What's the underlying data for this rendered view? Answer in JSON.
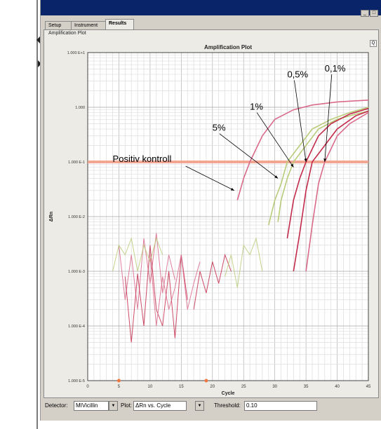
{
  "window": {
    "tabs": [
      "Setup",
      "Instrument",
      "Results"
    ],
    "active_tab": "Results",
    "panel_title": "Amplification Plot"
  },
  "chart_data": {
    "type": "line",
    "title": "Amplification Plot",
    "xlabel": "Cycle",
    "ylabel": "ΔRn",
    "xlim": [
      0,
      45
    ],
    "x_ticks": [
      0,
      5,
      10,
      15,
      20,
      25,
      30,
      35,
      40,
      45
    ],
    "y_scale": "log",
    "ylim": [
      1e-05,
      10
    ],
    "y_tick_labels": [
      "1.000 E+1",
      "1.000",
      "1.000 E-1",
      "1.000 E-2",
      "1.000 E-3",
      "1.000 E-4",
      "1.000 E-5"
    ],
    "y_tick_values": [
      10,
      1,
      0.1,
      0.01,
      0.001,
      0.0001,
      1e-05
    ],
    "threshold": 0.1,
    "grid": true,
    "colors": {
      "pink": "#d96a8a",
      "red": "#c42a4a",
      "green": "#b8cc7a",
      "threshold": "#f5a08a"
    },
    "series": [
      {
        "color": "pink",
        "x": [
          24,
          25,
          26,
          28,
          30,
          33,
          36,
          40,
          45
        ],
        "y": [
          0.02,
          0.05,
          0.1,
          0.3,
          0.6,
          0.9,
          1.1,
          1.25,
          1.35
        ]
      },
      {
        "color": "green",
        "x": [
          29,
          30,
          31,
          32,
          34,
          36,
          39,
          42,
          45
        ],
        "y": [
          0.007,
          0.02,
          0.04,
          0.1,
          0.2,
          0.4,
          0.6,
          0.8,
          1.0
        ]
      },
      {
        "color": "green",
        "x": [
          30.5,
          31,
          32,
          33,
          35,
          37,
          40,
          43,
          45
        ],
        "y": [
          0.008,
          0.02,
          0.05,
          0.1,
          0.2,
          0.4,
          0.6,
          0.75,
          0.85
        ]
      },
      {
        "color": "red",
        "x": [
          32,
          33,
          34,
          35,
          37,
          39,
          42,
          45
        ],
        "y": [
          0.004,
          0.02,
          0.05,
          0.1,
          0.3,
          0.5,
          0.75,
          0.95
        ]
      },
      {
        "color": "red",
        "x": [
          33,
          34,
          35,
          36,
          38,
          40,
          43,
          45
        ],
        "y": [
          0.001,
          0.005,
          0.03,
          0.1,
          0.2,
          0.4,
          0.7,
          0.85
        ]
      },
      {
        "color": "pink",
        "x": [
          35,
          36,
          37,
          38,
          40,
          42,
          45
        ],
        "y": [
          0.001,
          0.007,
          0.04,
          0.1,
          0.3,
          0.5,
          0.8
        ]
      }
    ],
    "noise": [
      {
        "color": "pink",
        "x": [
          5,
          6,
          7,
          8,
          9,
          10,
          11,
          12,
          13,
          14
        ],
        "y": [
          0.003,
          0.0003,
          0.002,
          0.0002,
          0.004,
          0.0006,
          0.005,
          0.0004,
          0.002,
          0.0007
        ]
      },
      {
        "color": "red",
        "x": [
          6,
          7,
          8,
          9,
          10,
          11,
          12,
          13,
          14,
          15,
          16
        ],
        "y": [
          0.0008,
          5e-05,
          0.0009,
          0.0001,
          0.003,
          0.0002,
          0.0001,
          0.001,
          6e-05,
          0.002,
          0.0003
        ]
      },
      {
        "color": "green",
        "x": [
          4,
          5,
          6,
          7,
          8,
          9,
          10,
          11,
          12
        ],
        "y": [
          0.001,
          0.003,
          0.002,
          0.004,
          0.001,
          0.003,
          0.0015,
          0.004,
          0.002
        ]
      },
      {
        "color": "pink",
        "x": [
          10,
          11,
          12,
          13,
          14,
          15,
          16,
          17,
          18
        ],
        "y": [
          0.002,
          0.0001,
          0.0008,
          0.0002,
          0.0005,
          0.002,
          0.0002,
          0.0006,
          0.0015
        ]
      },
      {
        "color": "red",
        "x": [
          17,
          18,
          19,
          20,
          21,
          22,
          23
        ],
        "y": [
          0.0002,
          0.001,
          0.0004,
          0.0015,
          0.0006,
          0.002,
          0.001
        ]
      },
      {
        "color": "green",
        "x": [
          22,
          23,
          24,
          25,
          26,
          27,
          28
        ],
        "y": [
          0.0008,
          0.002,
          0.0005,
          0.003,
          0.002,
          0.004,
          0.001
        ]
      }
    ],
    "annotations": [
      {
        "text": "0,1%",
        "tx": 38.0,
        "ty": 4.5,
        "ax": 38.0,
        "ay": 0.1
      },
      {
        "text": "0,5%",
        "tx": 32.0,
        "ty": 3.5,
        "ax": 35.0,
        "ay": 0.1
      },
      {
        "text": "1%",
        "tx": 26.0,
        "ty": 0.9,
        "ax": 33.0,
        "ay": 0.08
      },
      {
        "text": "5%",
        "tx": 20.0,
        "ty": 0.37,
        "ax": 30.5,
        "ay": 0.05
      },
      {
        "text": "Positiv kontroll",
        "tx": 4.0,
        "ty": 0.1,
        "ax": 23.5,
        "ay": 0.03
      }
    ]
  },
  "bottombar": {
    "detector_label": "Detector:",
    "detector_value": "MIVicillin",
    "plot_label": "Plot:",
    "plot_value": "ΔRn vs. Cycle",
    "threshold_label": "Threshold:",
    "threshold_value": "0.10"
  }
}
